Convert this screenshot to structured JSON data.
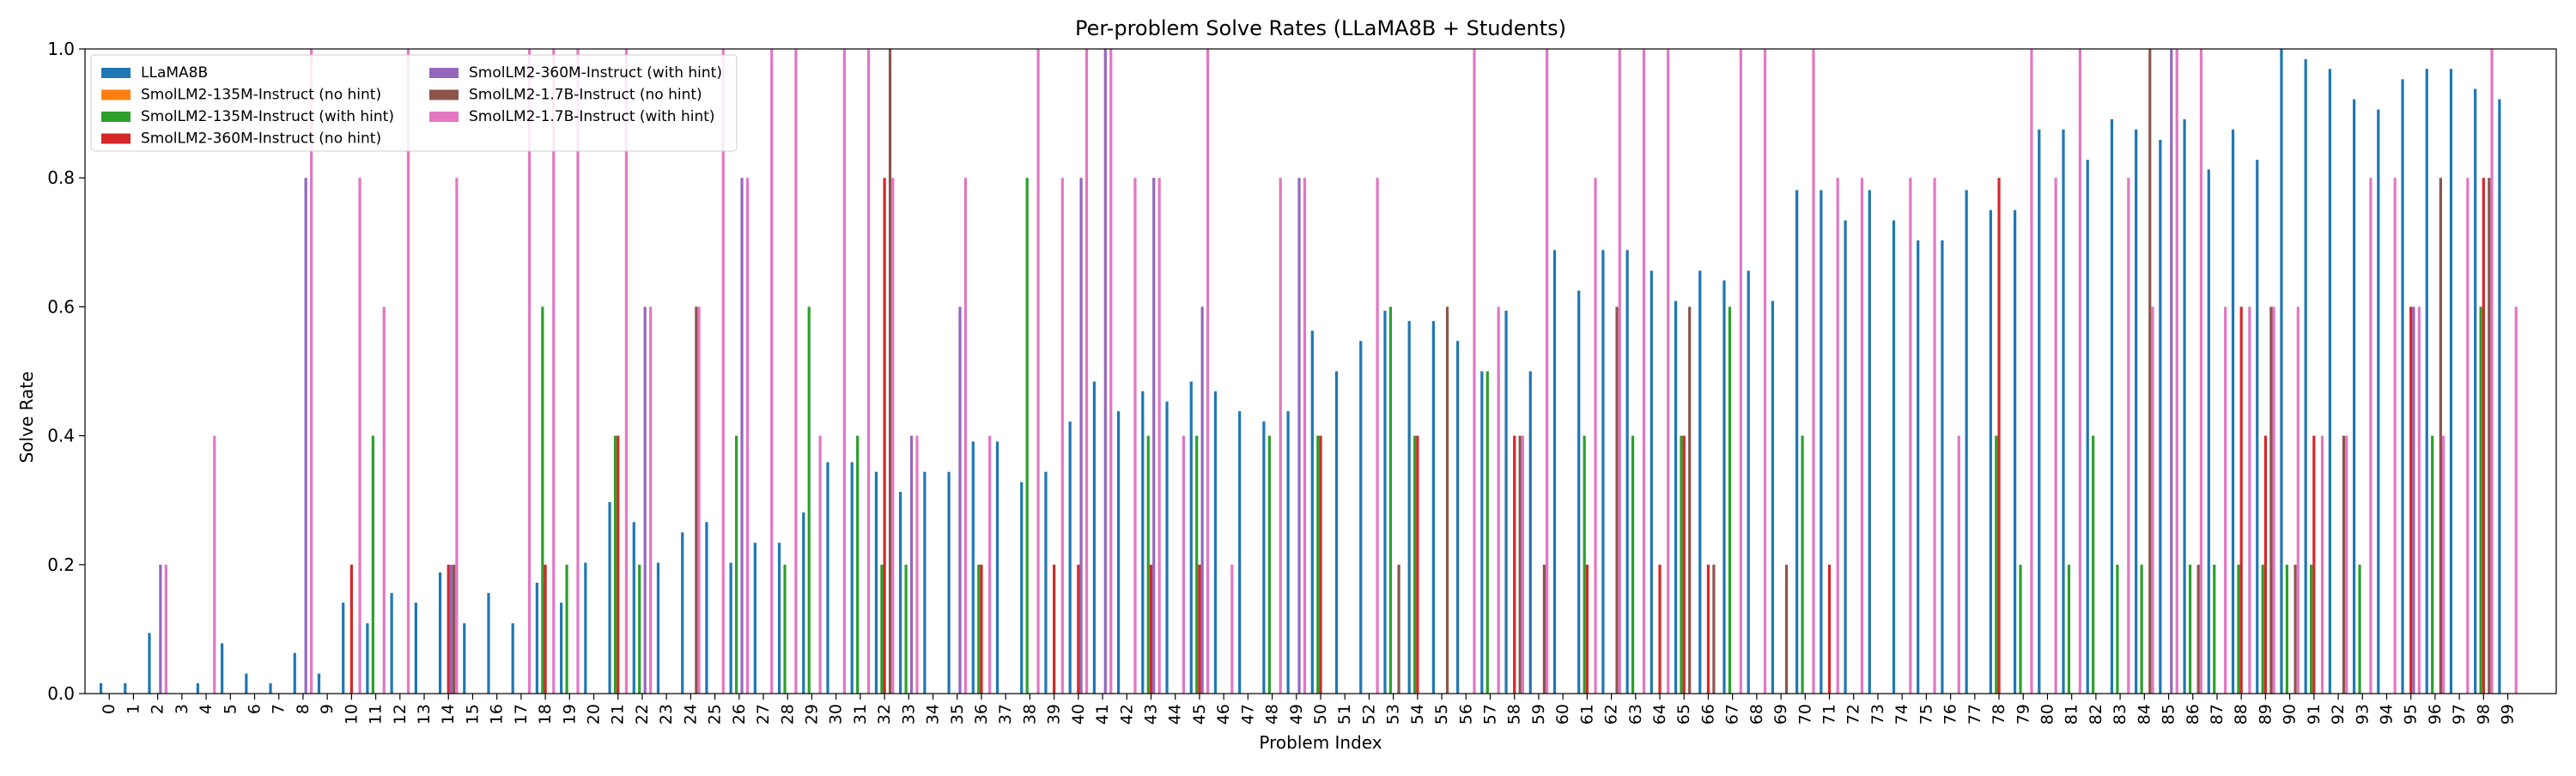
{
  "chart_data": {
    "type": "bar",
    "title": "Per-problem Solve Rates (LLaMA8B + Students)",
    "xlabel": "Problem Index",
    "ylabel": "Solve Rate",
    "ylim": [
      0,
      1.0
    ],
    "yticks": [
      0.0,
      0.2,
      0.4,
      0.6,
      0.8,
      1.0
    ],
    "ytick_labels": [
      "0.0",
      "0.2",
      "0.4",
      "0.6",
      "0.8",
      "1.0"
    ],
    "categories": [
      "0",
      "1",
      "2",
      "3",
      "4",
      "5",
      "6",
      "7",
      "8",
      "9",
      "10",
      "11",
      "12",
      "13",
      "14",
      "15",
      "16",
      "17",
      "18",
      "19",
      "20",
      "21",
      "22",
      "23",
      "24",
      "25",
      "26",
      "27",
      "28",
      "29",
      "30",
      "31",
      "32",
      "33",
      "34",
      "35",
      "36",
      "37",
      "38",
      "39",
      "40",
      "41",
      "42",
      "43",
      "44",
      "45",
      "46",
      "47",
      "48",
      "49",
      "50",
      "51",
      "52",
      "53",
      "54",
      "55",
      "56",
      "57",
      "58",
      "59",
      "60",
      "61",
      "62",
      "63",
      "64",
      "65",
      "66",
      "67",
      "68",
      "69",
      "70",
      "71",
      "72",
      "73",
      "74",
      "75",
      "76",
      "77",
      "78",
      "79",
      "80",
      "81",
      "82",
      "83",
      "84",
      "85",
      "86",
      "87",
      "88",
      "89",
      "90",
      "91",
      "92",
      "93",
      "94",
      "95",
      "96",
      "97",
      "98",
      "99"
    ],
    "grid": false,
    "legend_position": "top-left",
    "series": [
      {
        "name": "LLaMA8B",
        "color": "#1f77b4",
        "values": [
          0.016,
          0.016,
          0.094,
          0,
          0.016,
          0.078,
          0.031,
          0.016,
          0.063,
          0.031,
          0.141,
          0.109,
          0.156,
          0.141,
          0.188,
          0.109,
          0.156,
          0.109,
          0.172,
          0.141,
          0.203,
          0.297,
          0.266,
          0.203,
          0.25,
          0.266,
          0.203,
          0.234,
          0.234,
          0.281,
          0.359,
          0.359,
          0.344,
          0.313,
          0.344,
          0.344,
          0.391,
          0.391,
          0.328,
          0.344,
          0.422,
          0.484,
          0.438,
          0.469,
          0.453,
          0.484,
          0.469,
          0.438,
          0.422,
          0.438,
          0.563,
          0.5,
          0.547,
          0.594,
          0.578,
          0.578,
          0.547,
          0.5,
          0.594,
          0.5,
          0.688,
          0.625,
          0.688,
          0.688,
          0.656,
          0.609,
          0.656,
          0.641,
          0.656,
          0.609,
          0.781,
          0.781,
          0.734,
          0.781,
          0.734,
          0.703,
          0.703,
          0.781,
          0.75,
          0.75,
          0.875,
          0.875,
          0.828,
          0.891,
          0.875,
          0.859,
          0.891,
          0.813,
          0.875,
          0.828,
          1.0,
          0.984,
          0.969,
          0.922,
          0.906,
          0.953,
          0.969,
          0.969,
          0.938,
          0.922
        ]
      },
      {
        "name": "SmolLM2-135M-Instruct (no hint)",
        "color": "#ff7f0e",
        "values": [
          0,
          0,
          0,
          0,
          0,
          0,
          0,
          0,
          0,
          0,
          0,
          0,
          0,
          0,
          0,
          0,
          0,
          0,
          0,
          0,
          0,
          0,
          0,
          0,
          0,
          0,
          0,
          0,
          0,
          0,
          0,
          0,
          0,
          0,
          0,
          0,
          0,
          0,
          0,
          0,
          0,
          0,
          0,
          0,
          0,
          0,
          0,
          0,
          0,
          0,
          0,
          0,
          0,
          0,
          0,
          0,
          0,
          0,
          0,
          0,
          0,
          0,
          0,
          0,
          0,
          0,
          0,
          0,
          0,
          0,
          0,
          0,
          0,
          0,
          0,
          0,
          0,
          0,
          0,
          0,
          0,
          0,
          0,
          0,
          0,
          0,
          0,
          0,
          0,
          0,
          0,
          0,
          0,
          0,
          0,
          0,
          0,
          0,
          0,
          0
        ]
      },
      {
        "name": "SmolLM2-135M-Instruct (with hint)",
        "color": "#2ca02c",
        "values": [
          0,
          0,
          0,
          0,
          0,
          0,
          0,
          0,
          0,
          0,
          0,
          0.4,
          0,
          0,
          0,
          0,
          0,
          0,
          0.6,
          0.2,
          0,
          0.4,
          0.2,
          0,
          0,
          0,
          0.4,
          0,
          0.2,
          0.6,
          0,
          0.4,
          0.2,
          0.2,
          0,
          0,
          0.2,
          0,
          0.8,
          0,
          0,
          0,
          0,
          0.4,
          0,
          0.4,
          0,
          0,
          0.4,
          0,
          0.4,
          0,
          0,
          0.6,
          0.4,
          0,
          0,
          0.5,
          0,
          0,
          0,
          0.4,
          0,
          0.4,
          0,
          0.4,
          0,
          0.6,
          0,
          0,
          0.4,
          0,
          0,
          0,
          0,
          0,
          0,
          0,
          0.4,
          0.2,
          0,
          0.2,
          0.4,
          0.2,
          0.2,
          0,
          0.2,
          0.2,
          0.2,
          0.2,
          0.2,
          0.2,
          0,
          0.2,
          0,
          0,
          0.4,
          0,
          0.6,
          0
        ]
      },
      {
        "name": "SmolLM2-360M-Instruct (no hint)",
        "color": "#d62728",
        "values": [
          0,
          0,
          0,
          0,
          0,
          0,
          0,
          0,
          0,
          0,
          0.2,
          0,
          0,
          0,
          0.2,
          0,
          0,
          0,
          0.2,
          0,
          0,
          0.4,
          0,
          0,
          0,
          0,
          0,
          0,
          0,
          0,
          0,
          0,
          0.8,
          0,
          0,
          0,
          0.2,
          0,
          0,
          0.2,
          0.2,
          0,
          0,
          0.2,
          0,
          0.2,
          0,
          0,
          0,
          0,
          0.4,
          0,
          0,
          0,
          0.4,
          0,
          0,
          0,
          0.4,
          0,
          0,
          0.2,
          0,
          0,
          0.2,
          0.4,
          0.2,
          0,
          0,
          0,
          0,
          0.2,
          0,
          0,
          0,
          0,
          0,
          0,
          0.8,
          0,
          0,
          0,
          0,
          0,
          0,
          0,
          0,
          0,
          0.6,
          0.4,
          0,
          0.4,
          0,
          0,
          0,
          0.6,
          0,
          0,
          0.8,
          0
        ]
      },
      {
        "name": "SmolLM2-360M-Instruct (with hint)",
        "color": "#9467bd",
        "values": [
          0,
          0,
          0.2,
          0,
          0,
          0,
          0,
          0,
          0.8,
          0,
          0,
          0,
          0,
          0,
          0.2,
          0,
          0,
          0,
          0,
          0,
          0,
          0,
          0.6,
          0,
          0,
          0,
          0.8,
          0,
          0,
          0,
          0,
          0,
          0,
          0.4,
          0,
          0.6,
          0,
          0,
          0,
          0,
          0.8,
          1.0,
          0,
          0.8,
          0,
          0.6,
          0,
          0,
          0,
          0.8,
          0,
          0,
          0,
          0,
          0,
          0,
          0,
          0,
          0,
          0,
          0,
          0,
          0,
          0,
          0,
          0,
          0,
          0,
          0,
          0,
          0,
          0,
          0,
          0,
          0,
          0,
          0,
          0,
          0,
          0,
          0,
          0,
          0,
          0,
          0,
          1.0,
          0,
          0,
          0,
          0,
          0,
          0,
          0,
          0,
          0,
          0.6,
          0,
          0,
          0,
          0
        ]
      },
      {
        "name": "SmolLM2-1.7B-Instruct (no hint)",
        "color": "#8c564b",
        "values": [
          0,
          0,
          0,
          0,
          0,
          0,
          0,
          0,
          0,
          0,
          0,
          0,
          0,
          0,
          0.2,
          0,
          0,
          0,
          0,
          0,
          0,
          0,
          0,
          0,
          0.6,
          0,
          0,
          0,
          0,
          0,
          0,
          0,
          1.0,
          0,
          0,
          0,
          0,
          0,
          0,
          0,
          0,
          0,
          0,
          0,
          0,
          0,
          0,
          0,
          0,
          0,
          0,
          0,
          0,
          0.2,
          0,
          0.6,
          0,
          0,
          0.4,
          0.2,
          0,
          0,
          0.6,
          0,
          0,
          0.6,
          0.2,
          0,
          0,
          0.2,
          0,
          0,
          0,
          0,
          0,
          0,
          0,
          0,
          0,
          0,
          0,
          0,
          0,
          0,
          1.0,
          0,
          0.2,
          0,
          0,
          0.6,
          0.2,
          0,
          0.4,
          0,
          0,
          0,
          0.8,
          0,
          0.8,
          0
        ]
      },
      {
        "name": "SmolLM2-1.7B-Instruct (with hint)",
        "color": "#e377c2",
        "values": [
          0,
          0,
          0.2,
          0,
          0.4,
          0,
          0,
          0,
          1.0,
          0,
          0.8,
          0.6,
          1.0,
          0,
          0.8,
          0,
          0,
          1.0,
          1.0,
          1.0,
          0,
          1.0,
          0.6,
          0,
          0.6,
          1.0,
          0.8,
          1.0,
          1.0,
          0.4,
          1.0,
          1.0,
          0.8,
          0.4,
          0,
          0.8,
          0.4,
          0,
          1.0,
          0.8,
          1.0,
          1.0,
          0.8,
          0.8,
          0.4,
          1.0,
          0.2,
          0,
          0.8,
          0.8,
          0,
          0,
          0.8,
          0,
          0,
          0,
          1.0,
          0.6,
          0.4,
          1.0,
          0,
          0.8,
          1.0,
          1.0,
          1.0,
          0,
          0,
          1.0,
          1.0,
          0,
          1.0,
          0.8,
          0.8,
          0,
          0.8,
          0.8,
          0.4,
          0,
          0,
          1.0,
          0.8,
          1.0,
          0,
          0.8,
          0.6,
          1.0,
          1.0,
          0.6,
          0.6,
          0.6,
          0.6,
          0.4,
          0.4,
          0.8,
          0.8,
          0.6,
          0.4,
          0.8,
          1.0,
          0.6
        ]
      }
    ]
  }
}
